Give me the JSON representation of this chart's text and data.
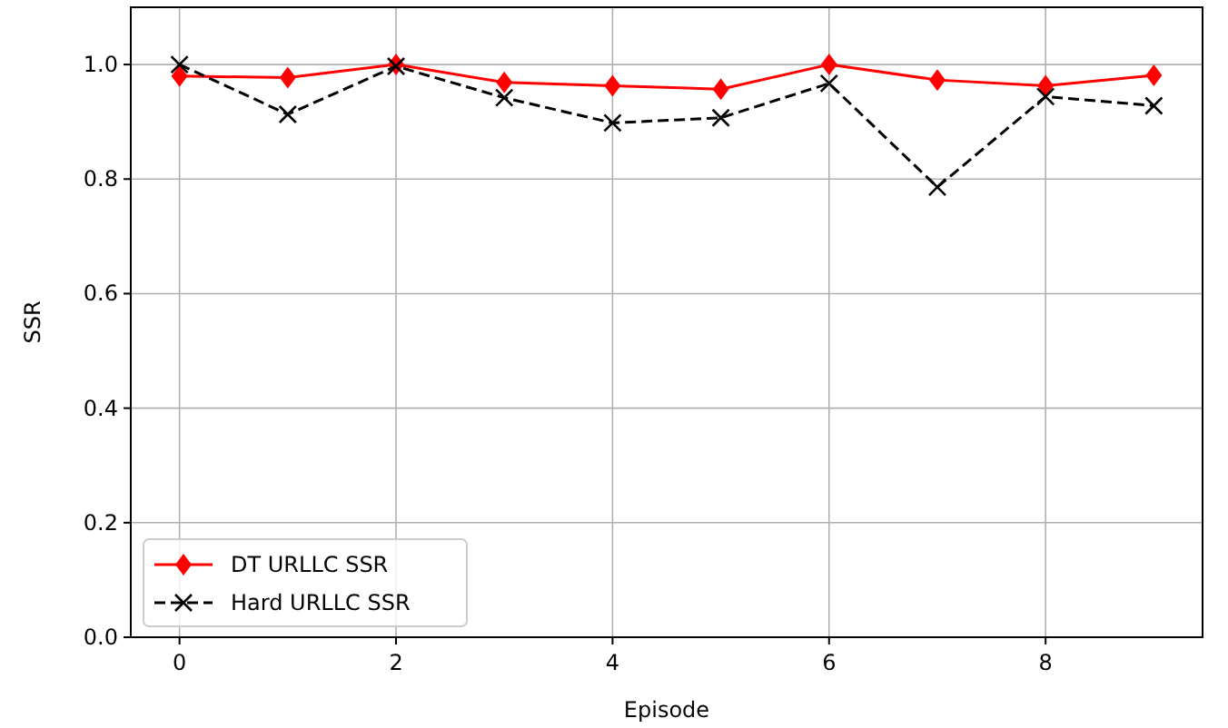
{
  "chart_data": {
    "type": "line",
    "xlabel": "Episode",
    "ylabel": "SSR",
    "x": [
      0,
      1,
      2,
      3,
      4,
      5,
      6,
      7,
      8,
      9
    ],
    "series": [
      {
        "name": "DT URLLC SSR",
        "color": "#ff0000",
        "marker": "diamond",
        "line_style": "solid",
        "values": [
          0.98,
          0.977,
          1.0,
          0.969,
          0.963,
          0.957,
          1.0,
          0.973,
          0.963,
          0.981
        ]
      },
      {
        "name": "Hard URLLC SSR",
        "color": "#000000",
        "marker": "cross",
        "line_style": "dashed",
        "values": [
          1.0,
          0.913,
          0.997,
          0.942,
          0.898,
          0.907,
          0.967,
          0.786,
          0.944,
          0.928
        ]
      }
    ],
    "xlim": [
      -0.45,
      9.45
    ],
    "xticks": [
      0,
      2,
      4,
      6,
      8
    ],
    "ylim": [
      0,
      1.1
    ],
    "yticks": [
      {
        "value": 0,
        "label": "0.0"
      },
      {
        "value": 0.2,
        "label": "0.2"
      },
      {
        "value": 0.4,
        "label": "0.4"
      },
      {
        "value": 0.6,
        "label": "0.6"
      },
      {
        "value": 0.8,
        "label": "0.8"
      },
      {
        "value": 1.0,
        "label": "1.0"
      }
    ],
    "grid": true,
    "legend": "bottom left"
  }
}
